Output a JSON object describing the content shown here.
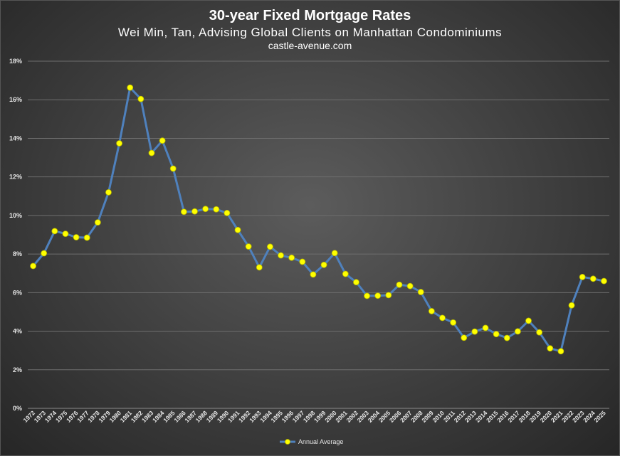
{
  "chart_data": {
    "type": "line",
    "title": "30-year Fixed Mortgage Rates",
    "subtitle": "Wei Min, Tan, Advising Global Clients on Manhattan Condominiums",
    "source": "castle-avenue.com",
    "xlabel": "",
    "ylabel": "",
    "ylim": [
      0,
      18
    ],
    "yticks": [
      "0%",
      "2%",
      "4%",
      "6%",
      "8%",
      "10%",
      "12%",
      "14%",
      "16%",
      "18%"
    ],
    "grid": true,
    "legend_position": "bottom",
    "x": [
      "1972",
      "1973",
      "1974",
      "1975",
      "1976",
      "1977",
      "1978",
      "1979",
      "1980",
      "1981",
      "1982",
      "1983",
      "1984",
      "1985",
      "1986",
      "1987",
      "1988",
      "1989",
      "1990",
      "1991",
      "1992",
      "1993",
      "1994",
      "1995",
      "1996",
      "1997",
      "1998",
      "1999",
      "2000",
      "2001",
      "2002",
      "2003",
      "2004",
      "2005",
      "2006",
      "2007",
      "2008",
      "2009",
      "2010",
      "2011",
      "2012",
      "2013",
      "2014",
      "2015",
      "2016",
      "2017",
      "2018",
      "2019",
      "2020",
      "2021",
      "2022",
      "2023",
      "2024",
      "2025"
    ],
    "series": [
      {
        "name": "Annual Average",
        "line_color": "#4f81bd",
        "marker_color": "#ffff00",
        "values": [
          7.38,
          8.04,
          9.19,
          9.05,
          8.87,
          8.85,
          9.64,
          11.2,
          13.74,
          16.63,
          16.04,
          13.24,
          13.88,
          12.43,
          10.19,
          10.21,
          10.34,
          10.32,
          10.13,
          9.25,
          8.39,
          7.31,
          8.38,
          7.93,
          7.81,
          7.6,
          6.94,
          7.44,
          8.05,
          6.97,
          6.54,
          5.83,
          5.84,
          5.87,
          6.41,
          6.34,
          6.03,
          5.04,
          4.69,
          4.45,
          3.66,
          3.98,
          4.17,
          3.85,
          3.65,
          3.99,
          4.54,
          3.94,
          3.11,
          2.96,
          5.34,
          6.81,
          6.72,
          6.6
        ]
      }
    ]
  }
}
